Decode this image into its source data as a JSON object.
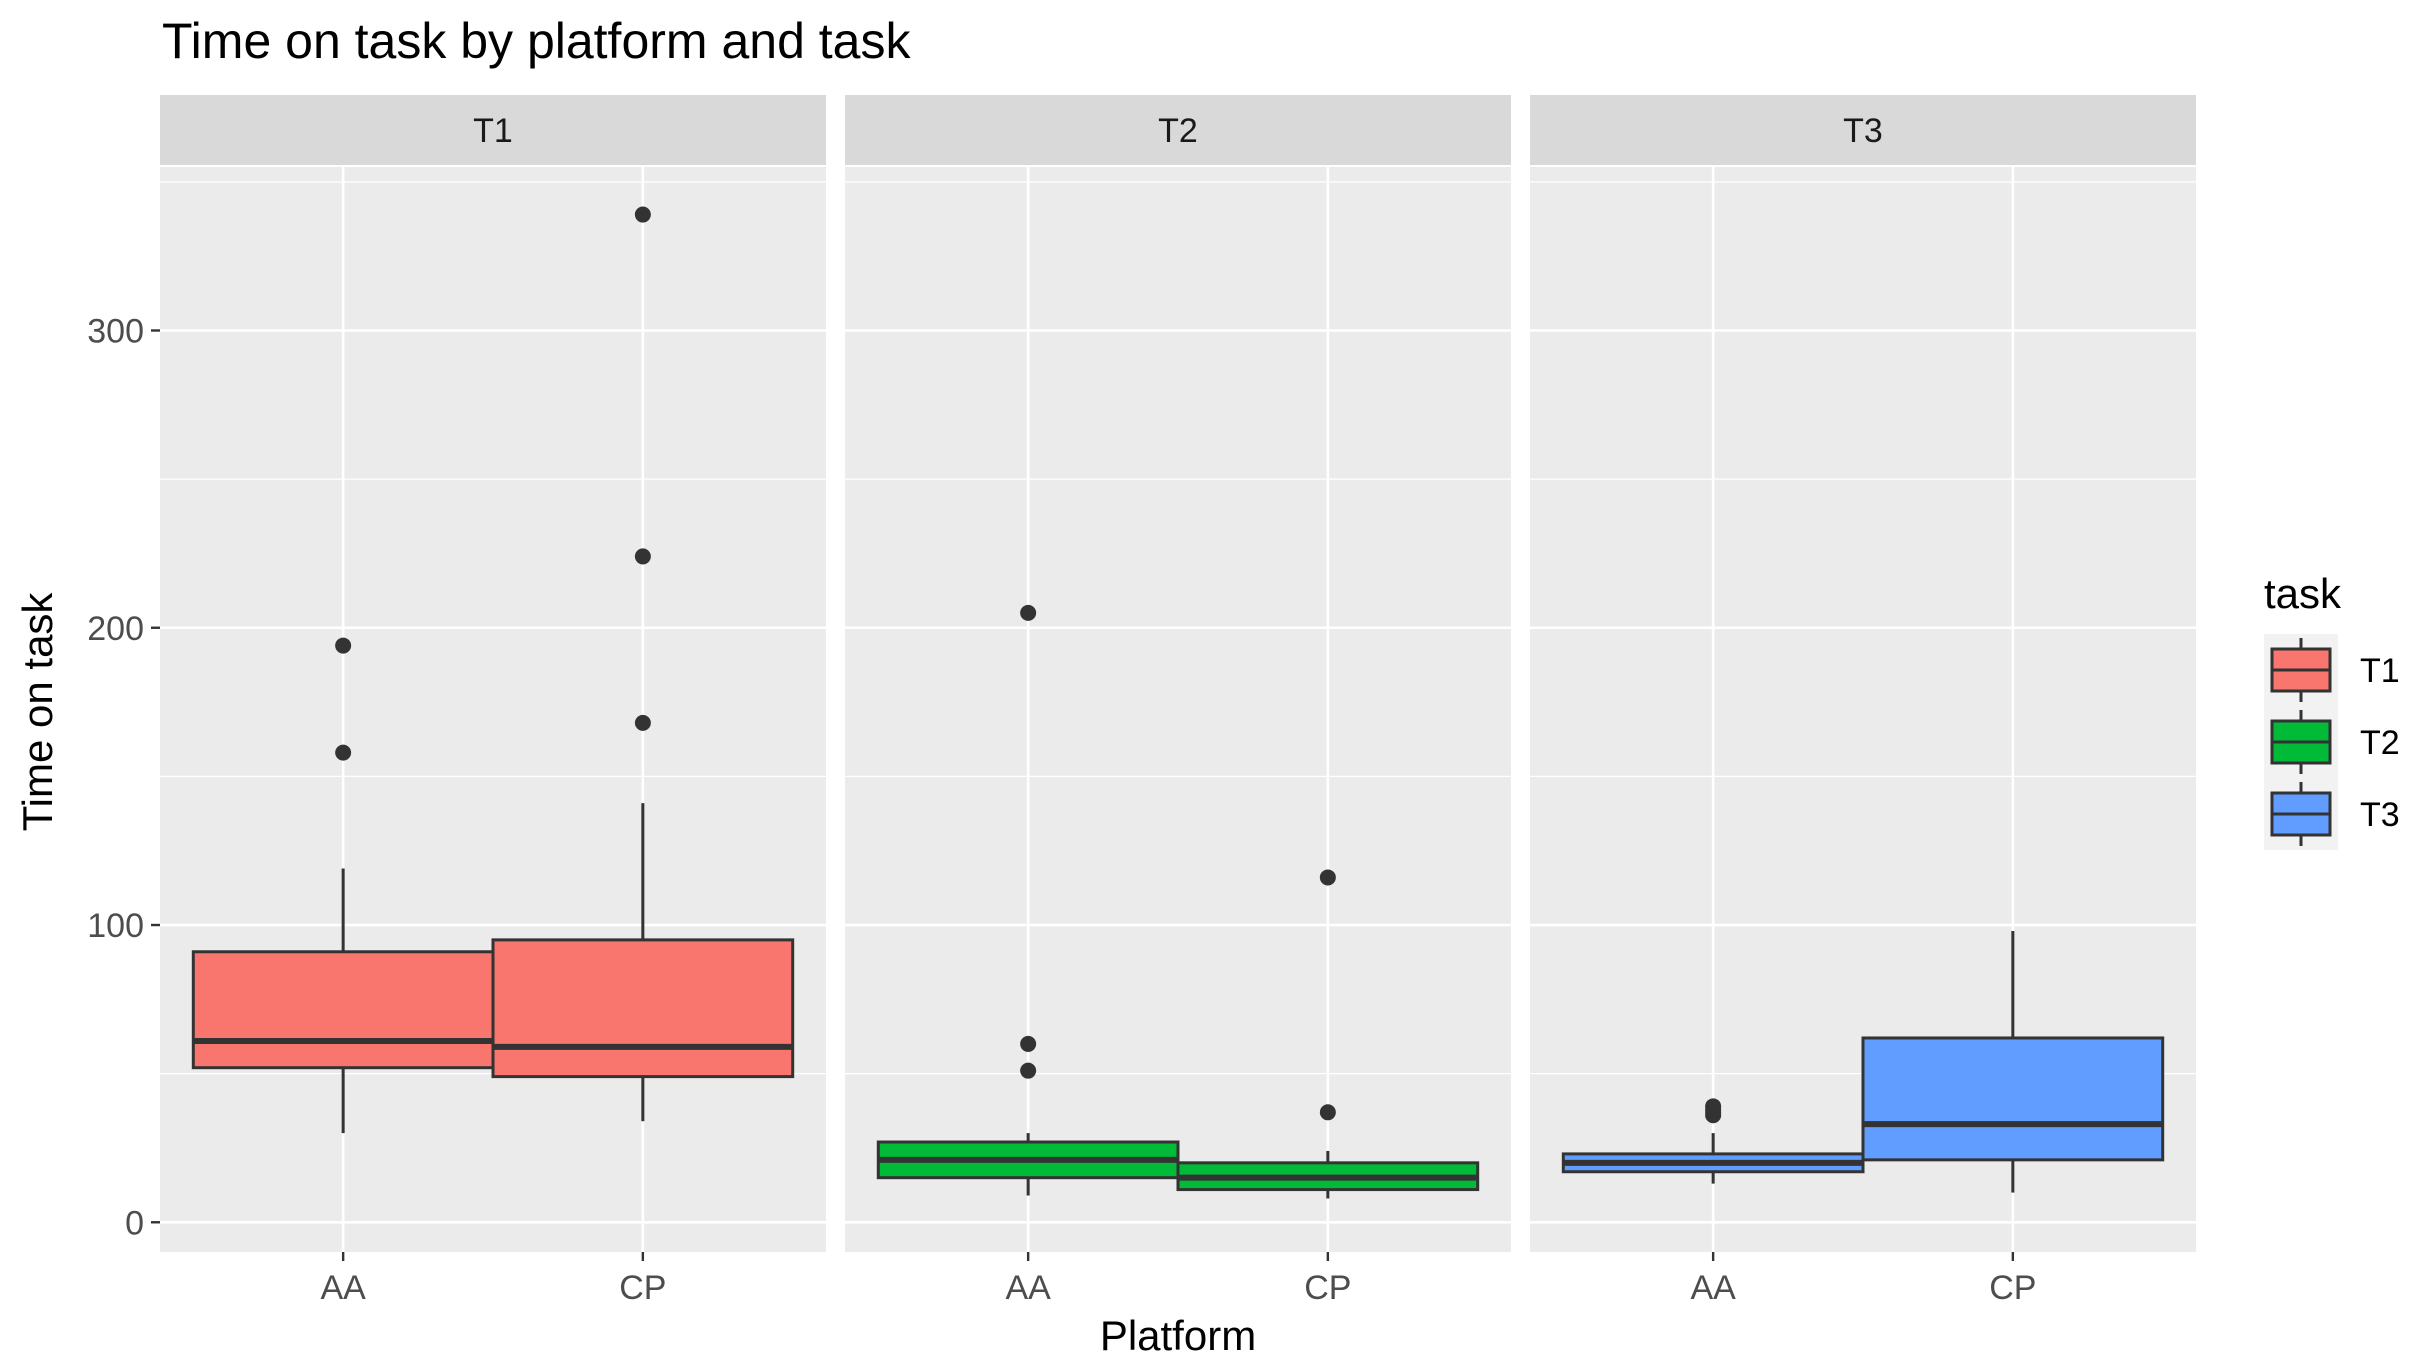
{
  "chart_data": {
    "type": "boxplot",
    "title": "Time on task by platform and task",
    "xlabel": "Platform",
    "ylabel": "Time on task",
    "ylim": [
      -10,
      355
    ],
    "yticks": [
      0,
      100,
      200,
      300
    ],
    "categories": [
      "AA",
      "CP"
    ],
    "grid": true,
    "legend": {
      "title": "task",
      "placement": "right",
      "items": [
        {
          "label": "T1",
          "color": "#F8766D"
        },
        {
          "label": "T2",
          "color": "#00BA38"
        },
        {
          "label": "T3",
          "color": "#619CFF"
        }
      ]
    },
    "panels": [
      {
        "label": "T1",
        "color": "#F8766D",
        "boxes": [
          {
            "category": "AA",
            "whisker_low": 30,
            "q1": 52,
            "median": 61,
            "q3": 91,
            "whisker_high": 119,
            "outliers": [
              158,
              194
            ]
          },
          {
            "category": "CP",
            "whisker_low": 34,
            "q1": 49,
            "median": 59,
            "q3": 95,
            "whisker_high": 141,
            "outliers": [
              168,
              224,
              339
            ]
          }
        ]
      },
      {
        "label": "T2",
        "color": "#00BA38",
        "boxes": [
          {
            "category": "AA",
            "whisker_low": 9,
            "q1": 15,
            "median": 21,
            "q3": 27,
            "whisker_high": 30,
            "outliers": [
              51,
              60,
              205
            ]
          },
          {
            "category": "CP",
            "whisker_low": 8,
            "q1": 11,
            "median": 15,
            "q3": 20,
            "whisker_high": 24,
            "outliers": [
              37,
              116
            ]
          }
        ]
      },
      {
        "label": "T3",
        "color": "#619CFF",
        "boxes": [
          {
            "category": "AA",
            "whisker_low": 13,
            "q1": 17,
            "median": 20,
            "q3": 23,
            "whisker_high": 30,
            "outliers": [
              36,
              37,
              38,
              39
            ]
          },
          {
            "category": "CP",
            "whisker_low": 10,
            "q1": 21,
            "median": 33,
            "q3": 62,
            "whisker_high": 98,
            "outliers": []
          }
        ]
      }
    ]
  }
}
